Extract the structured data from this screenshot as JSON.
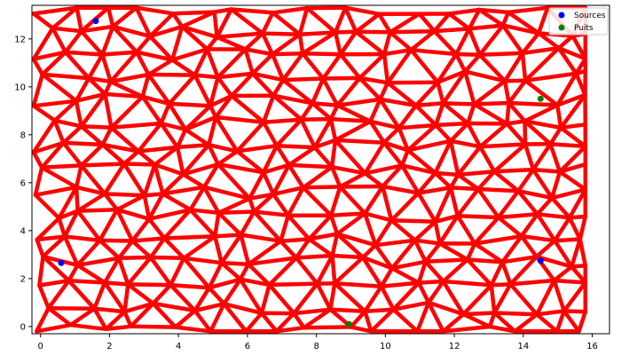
{
  "chart_data": {
    "type": "network-scatter",
    "title": "",
    "xlabel": "",
    "ylabel": "",
    "xlim": [
      -0.25,
      16.5
    ],
    "ylim": [
      -0.3,
      13.4
    ],
    "xticks": [
      0,
      2,
      4,
      6,
      8,
      10,
      12,
      14,
      16
    ],
    "yticks": [
      0,
      2,
      4,
      6,
      8,
      10,
      12
    ],
    "grid": false,
    "legend": {
      "placement": "top-right",
      "entries": [
        {
          "name": "Sources",
          "color": "#0000ff"
        },
        {
          "name": "Puits",
          "color": "#008000"
        }
      ]
    },
    "edge_color": "#ff0000",
    "sources": [
      {
        "x": 1.6,
        "y": 12.75
      },
      {
        "x": 0.6,
        "y": 2.65
      },
      {
        "x": 14.5,
        "y": 2.75
      }
    ],
    "puits": [
      {
        "x": 14.5,
        "y": 9.5
      },
      {
        "x": 8.95,
        "y": 0.1
      }
    ],
    "network": {
      "description_note": "",
      "x_range": [
        -0.2,
        15.8
      ],
      "y_range": [
        -0.2,
        13.3
      ]
    }
  }
}
